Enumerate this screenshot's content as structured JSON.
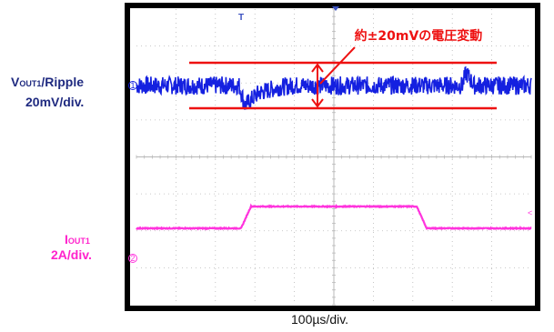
{
  "labels": {
    "ch1_name_main": "V",
    "ch1_name_sub": "OUT1",
    "ch1_name_suffix": "/Ripple",
    "ch1_scale": "20mV/div.",
    "ch2_name_main": "I",
    "ch2_name_sub": "OUT1",
    "ch2_scale": "2A/div.",
    "timebase": "100µs/div.",
    "annotation": "約±20mVの電圧変動"
  },
  "markers": {
    "trigger": "T",
    "ch1": "1",
    "ch2": "2"
  },
  "colors": {
    "ch1": "#1420e0",
    "ch2": "#ff33dd",
    "annotation": "#ee1111",
    "label": "#1f2a80",
    "ch2_label": "#ff22cc",
    "frame": "#000000",
    "grid": "#b8b8b8"
  },
  "chart_data": {
    "type": "line",
    "title": "",
    "xlabel": "100µs/div.",
    "grid": true,
    "horizontal_divisions": 10,
    "vertical_divisions": 8,
    "series": [
      {
        "name": "VOUT1/Ripple",
        "scale": "20mV/div.",
        "points_div": [
          [
            0,
            0
          ],
          [
            2.6,
            0
          ],
          [
            2.75,
            -0.55
          ],
          [
            3.1,
            -0.2
          ],
          [
            3.6,
            -0.05
          ],
          [
            4.0,
            0
          ],
          [
            8.25,
            0
          ],
          [
            8.35,
            0.35
          ],
          [
            8.55,
            0
          ],
          [
            10,
            0
          ]
        ],
        "noise_div": 0.25
      },
      {
        "name": "IOUT1",
        "scale": "2A/div.",
        "points_div": [
          [
            0,
            0
          ],
          [
            2.65,
            0
          ],
          [
            2.9,
            1.0
          ],
          [
            7.1,
            1.0
          ],
          [
            7.35,
            0
          ],
          [
            10,
            0
          ]
        ]
      }
    ],
    "annotation": {
      "text": "約±20mVの電圧変動",
      "band_div": [
        -0.5,
        0.5
      ]
    }
  }
}
